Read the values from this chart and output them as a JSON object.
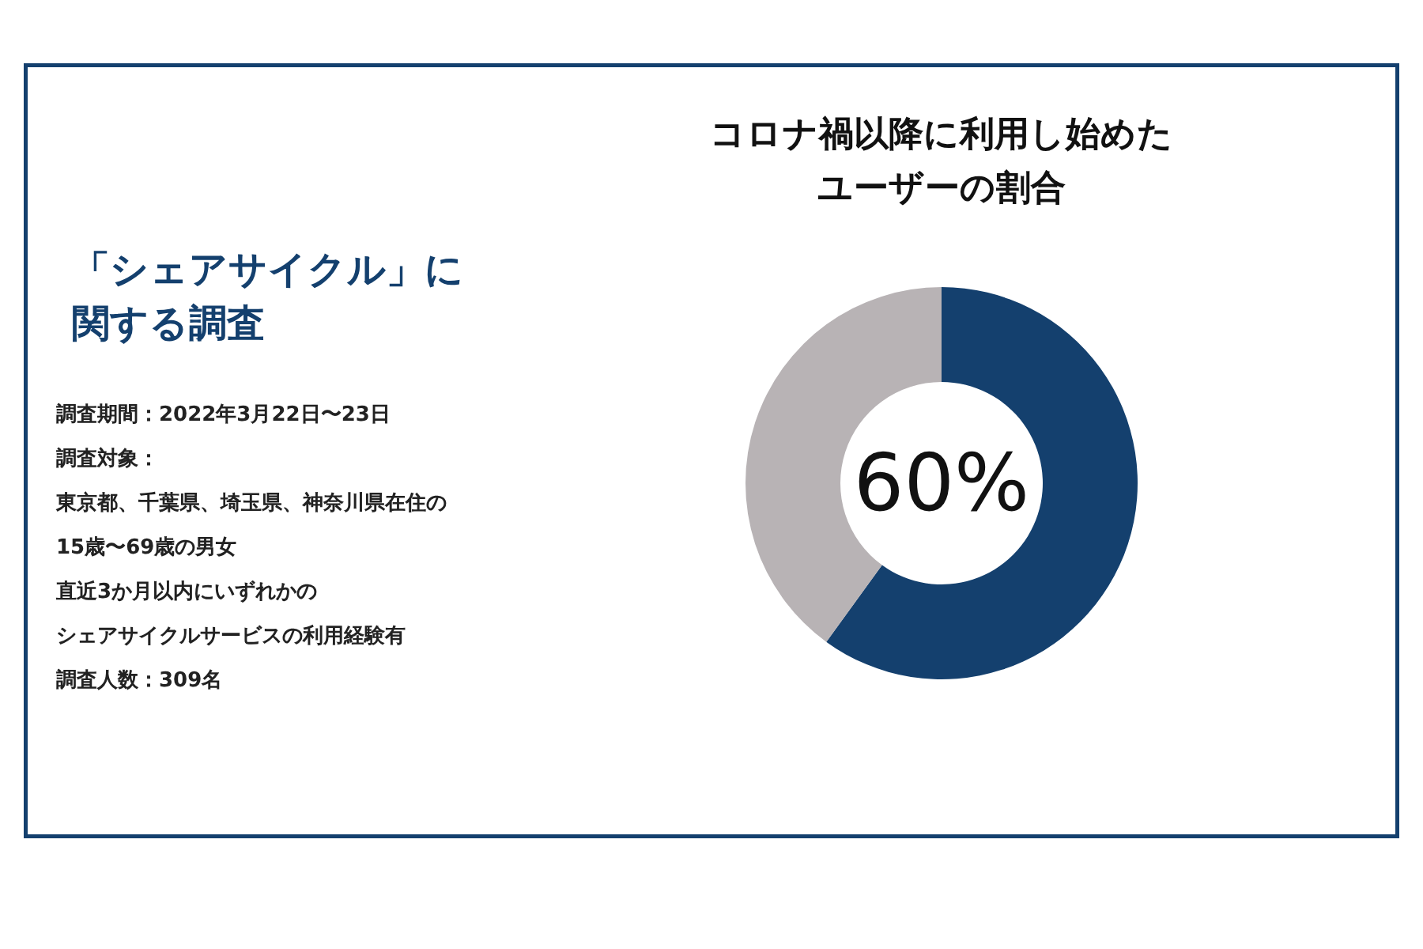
{
  "chart_data": {
    "type": "donut",
    "title": "コロナ禍以降に利用し始めたユーザーの割合",
    "categories": [
      null,
      null
    ],
    "values": [
      60,
      40
    ],
    "colors": [
      "#14406e",
      "#b8b3b5"
    ],
    "value_labels": [
      "60%",
      null
    ],
    "annotations": [
      "「シェアサイクル」に関する調査",
      "調査期間：2022年3月22日〜23日",
      "調査対象：",
      "東京都、千葉県、埼玉県、神奈川県在住の",
      "15歳〜69歳の男女",
      "直近3か月以内にいずれかの",
      "シェアサイクルサービスの利用経験有",
      "調査人数：309名"
    ]
  }
}
